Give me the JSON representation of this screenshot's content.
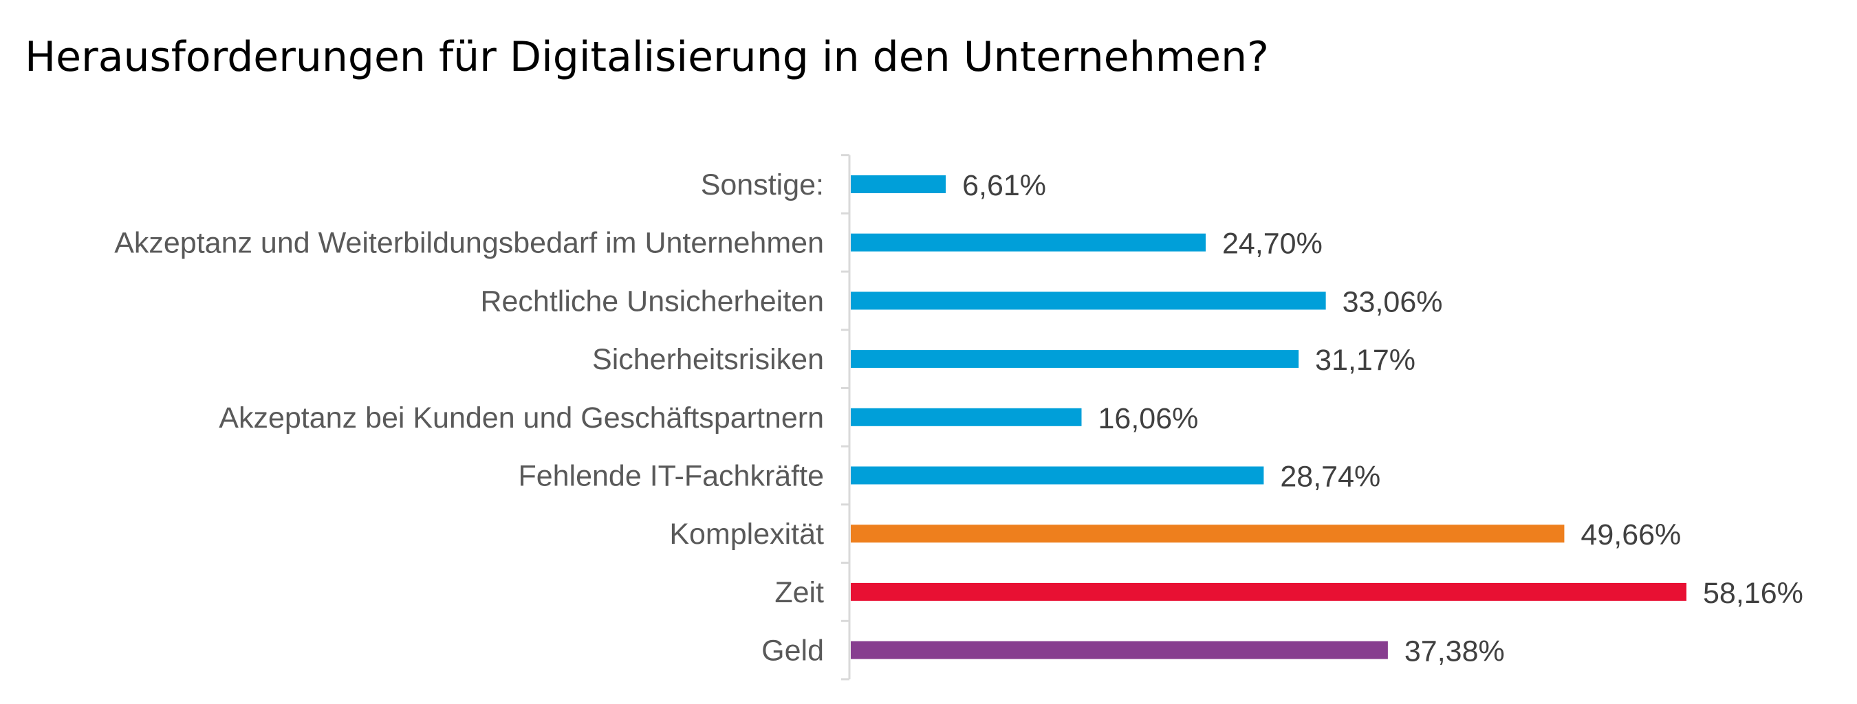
{
  "chart_data": {
    "type": "bar",
    "orientation": "horizontal",
    "title": "Herausforderungen für Digitalisierung in den Unternehmen?",
    "xlabel": "",
    "ylabel": "",
    "xlim": [
      0,
      60
    ],
    "grid": false,
    "legend": "none",
    "unit": "%",
    "categories": [
      "Sonstige:",
      "Akzeptanz und Weiterbildungsbedarf im Unternehmen",
      "Rechtliche Unsicherheiten",
      "Sicherheitsrisiken",
      "Akzeptanz bei Kunden und Geschäftspartnern",
      "Fehlende IT-Fachkräfte",
      "Komplexität",
      "Zeit",
      "Geld"
    ],
    "values": [
      6.61,
      24.7,
      33.06,
      31.17,
      16.06,
      28.74,
      49.66,
      58.16,
      37.38
    ],
    "value_labels": [
      "6,61%",
      "24,70%",
      "33,06%",
      "31,17%",
      "16,06%",
      "28,74%",
      "49,66%",
      "58,16%",
      "37,38%"
    ],
    "colors": [
      "#009fd9",
      "#009fd9",
      "#009fd9",
      "#009fd9",
      "#009fd9",
      "#009fd9",
      "#ee7f1d",
      "#e81033",
      "#873d8f"
    ],
    "axis_color": "#d9d9d9"
  }
}
